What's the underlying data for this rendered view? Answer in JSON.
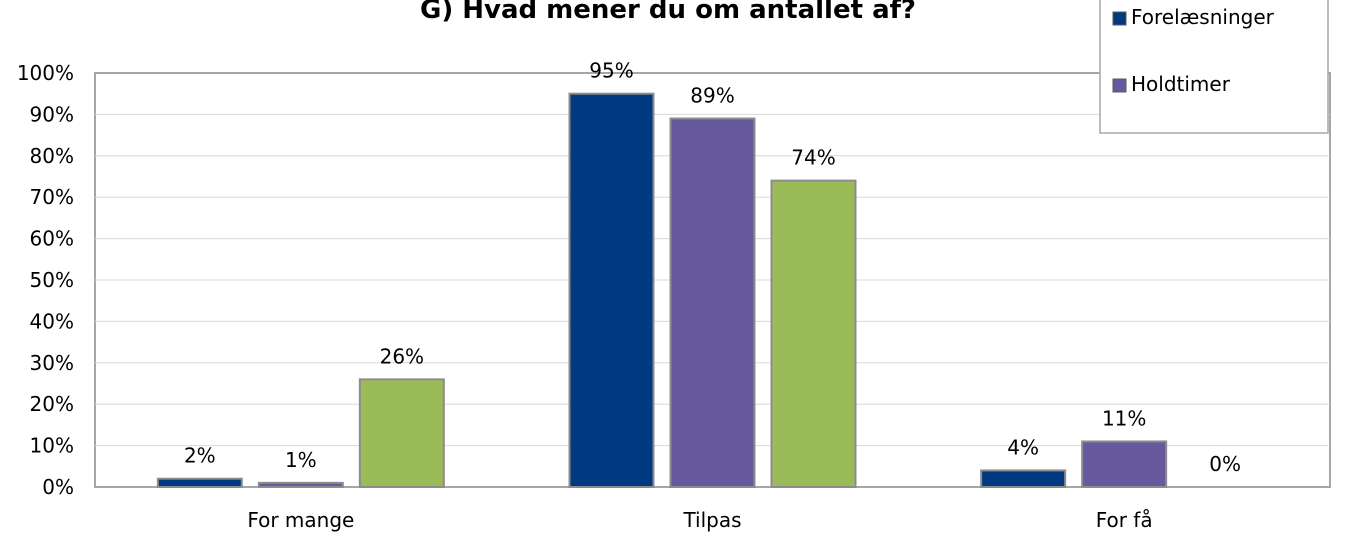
{
  "chart_data": {
    "type": "bar",
    "title": "G) Hvad mener du om antallet af?",
    "categories": [
      "For mange",
      "Tilpas",
      "For få"
    ],
    "series": [
      {
        "name": "Forelæsninger",
        "color": "#003A80",
        "values": [
          2,
          95,
          4
        ],
        "labels": [
          "2%",
          "95%",
          "4%"
        ]
      },
      {
        "name": "Holdtimer",
        "color": "#66599E",
        "values": [
          1,
          89,
          11
        ],
        "labels": [
          "1%",
          "89%",
          "11%"
        ]
      },
      {
        "name": "",
        "color": "#9BBB59",
        "values": [
          26,
          74,
          0
        ],
        "labels": [
          "26%",
          "74%",
          "0%"
        ]
      }
    ],
    "y_ticks": [
      "0%",
      "10%",
      "20%",
      "30%",
      "40%",
      "50%",
      "60%",
      "70%",
      "80%",
      "90%",
      "100%"
    ],
    "ylim": [
      0,
      100
    ],
    "grid": true,
    "legend_position": "top-right"
  }
}
